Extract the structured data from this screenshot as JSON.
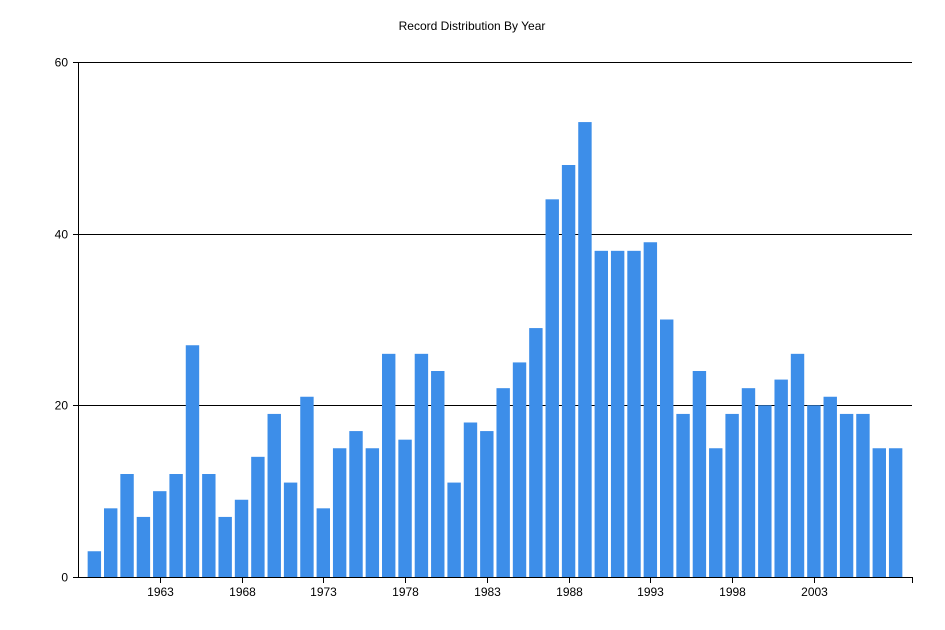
{
  "chart_data": {
    "type": "bar",
    "title": "Record Distribution By Year",
    "xlabel": "",
    "ylabel": "",
    "x": [
      1959,
      1960,
      1961,
      1962,
      1963,
      1964,
      1965,
      1966,
      1967,
      1968,
      1969,
      1970,
      1971,
      1972,
      1973,
      1974,
      1975,
      1976,
      1977,
      1978,
      1979,
      1980,
      1981,
      1982,
      1983,
      1984,
      1985,
      1986,
      1987,
      1988,
      1989,
      1990,
      1991,
      1992,
      1993,
      1994,
      1995,
      1996,
      1997,
      1998,
      1999,
      2000,
      2001,
      2002,
      2003,
      2004,
      2005,
      2006,
      2007,
      2008
    ],
    "values": [
      3,
      8,
      12,
      7,
      10,
      12,
      27,
      12,
      7,
      9,
      14,
      19,
      11,
      21,
      8,
      15,
      17,
      15,
      26,
      16,
      26,
      24,
      11,
      18,
      17,
      22,
      25,
      29,
      44,
      48,
      53,
      38,
      38,
      38,
      39,
      30,
      19,
      24,
      15,
      19,
      22,
      20,
      23,
      26,
      20,
      21,
      19,
      19,
      15,
      15
    ],
    "x_ticks": [
      "1963",
      "1968",
      "1973",
      "1978",
      "1983",
      "1988",
      "1993",
      "1998",
      "2003"
    ],
    "y_ticks": [
      "0",
      "20",
      "40",
      "60"
    ],
    "ylim": [
      0,
      60
    ],
    "grid": true,
    "bar_color": "#3d8ee9",
    "legend": "none"
  }
}
